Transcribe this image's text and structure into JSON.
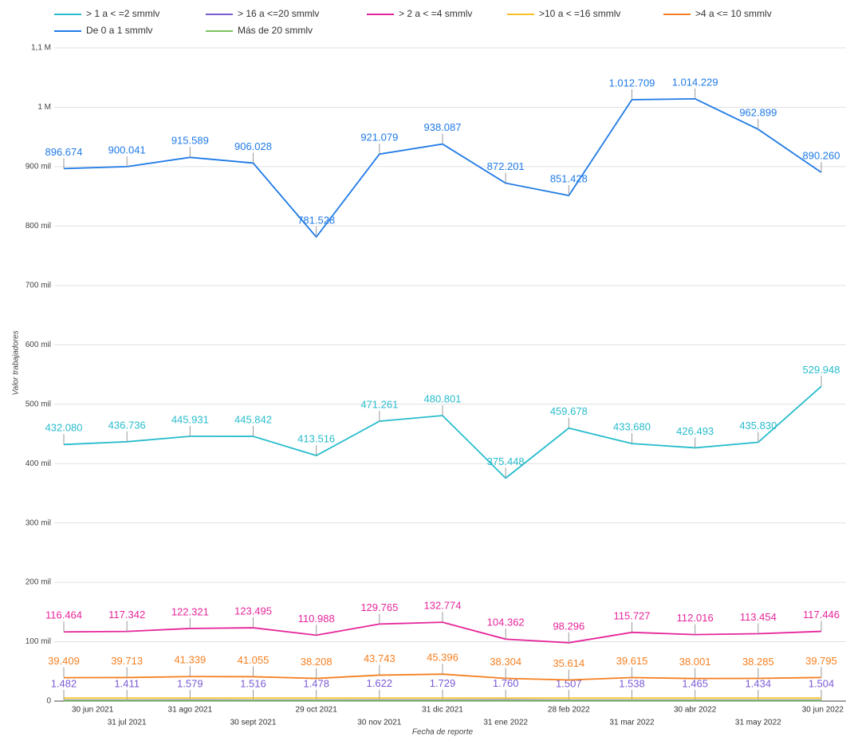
{
  "chart_data": {
    "type": "line",
    "y_label": "Valor trabajadores",
    "x_label": "Fecha de reporte",
    "categories": [
      "30 jun 2021",
      "31 jul 2021",
      "31 ago 2021",
      "30 sept 2021",
      "29 oct 2021",
      "30 nov 2021",
      "31 dic 2021",
      "31 ene 2022",
      "28 feb 2022",
      "31 mar 2022",
      "30 abr 2022",
      "31 may 2022",
      "30 jun 2022"
    ],
    "ylim": [
      0,
      1100000
    ],
    "yticks": [
      0,
      {
        "value": 100000,
        "label": "100 mil"
      },
      {
        "value": 200000,
        "label": "200 mil"
      },
      {
        "value": 300000,
        "label": "300 mil"
      },
      {
        "value": 400000,
        "label": "400 mil"
      },
      {
        "value": 500000,
        "label": "500 mil"
      },
      {
        "value": 600000,
        "label": "600 mil"
      },
      {
        "value": 700000,
        "label": "700 mil"
      },
      {
        "value": 800000,
        "label": "800 mil"
      },
      {
        "value": 900000,
        "label": "900 mil"
      },
      {
        "value": 1000000,
        "label": "1 M"
      },
      {
        "value": 1100000,
        "label": "1,1 M"
      }
    ],
    "grid": true,
    "legend": "top",
    "series": [
      {
        "name": "> 1 a < =2 smmlv",
        "color": "#27bccd",
        "values": [
          432080,
          436736,
          445931,
          445842,
          413516,
          471261,
          480801,
          375448,
          459678,
          433680,
          426493,
          435830,
          529948
        ],
        "value_labels": [
          "432.080",
          "436.736",
          "445.931",
          "445.842",
          "413.516",
          "471.261",
          "480.801",
          "375.448",
          "459.678",
          "433.680",
          "426.493",
          "435.830",
          "529.948"
        ]
      },
      {
        "name": "> 16 a <=20 smmlv",
        "color": "#7b5ad6",
        "values": [
          1482,
          1411,
          1579,
          1516,
          1478,
          1622,
          1729,
          1760,
          1507,
          1538,
          1465,
          1434,
          1504
        ],
        "value_labels": [
          "1.482",
          "1.411",
          "1.579",
          "1.516",
          "1.478",
          "1.622",
          "1.729",
          "1.760",
          "1.507",
          "1.538",
          "1.465",
          "1.434",
          "1.504"
        ]
      },
      {
        "name": "> 2 a < =4 smmlv",
        "color": "#e5259a",
        "values": [
          116464,
          117342,
          122321,
          123495,
          110988,
          129765,
          132774,
          104362,
          98296,
          115727,
          112016,
          113454,
          117446
        ],
        "value_labels": [
          "116.464",
          "117.342",
          "122.321",
          "123.495",
          "110.988",
          "129.765",
          "132.774",
          "104.362",
          "98.296",
          "115.727",
          "112.016",
          "113.454",
          "117.446"
        ]
      },
      {
        "name": ">10 a < =16 smmlv",
        "color": "#f6bf26",
        "values": [
          5000,
          5000,
          5000,
          5000,
          5000,
          5000,
          5000,
          5000,
          5000,
          5000,
          5000,
          5000,
          5000
        ]
      },
      {
        "name": ">4 a <= 10 smmlv",
        "color": "#f57f20",
        "values": [
          39409,
          39713,
          41339,
          41055,
          38208,
          43743,
          45396,
          38304,
          35614,
          39615,
          38001,
          38285,
          39795
        ],
        "value_labels": [
          "39.409",
          "39.713",
          "41.339",
          "41.055",
          "38.208",
          "43.743",
          "45.396",
          "38.304",
          "35.614",
          "39.615",
          "38.001",
          "38.285",
          "39.795"
        ]
      },
      {
        "name": "De 0 a 1 smmlv",
        "color": "#1f7ae6",
        "values": [
          896674,
          900041,
          915589,
          906028,
          781528,
          921079,
          938087,
          872201,
          851428,
          1012709,
          1014229,
          962899,
          890260
        ],
        "value_labels": [
          "896.674",
          "900.041",
          "915.589",
          "906.028",
          "781.528",
          "921.079",
          "938.087",
          "872.201",
          "851.428",
          "1.012.709",
          "1.014.229",
          "962.899",
          "890.260"
        ]
      },
      {
        "name": "Más de 20 smmlv",
        "color": "#7cc35d",
        "values": [
          800,
          800,
          800,
          800,
          800,
          800,
          800,
          800,
          800,
          800,
          800,
          800,
          800
        ]
      }
    ]
  }
}
